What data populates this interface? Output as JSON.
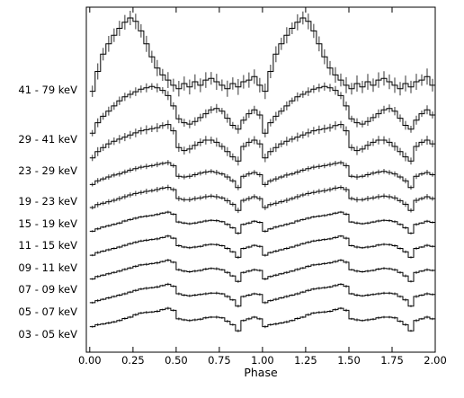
{
  "chart_data": {
    "type": "line",
    "title": "",
    "xlabel": "Phase",
    "ylabel": "",
    "xlim": [
      -0.02,
      2.0
    ],
    "x_ticks": [
      "0.00",
      "0.25",
      "0.50",
      "0.75",
      "1.00",
      "1.25",
      "1.50",
      "1.75",
      "2.00"
    ],
    "x_tick_values": [
      0.0,
      0.25,
      0.5,
      0.75,
      1.0,
      1.25,
      1.5,
      1.75,
      2.0
    ],
    "grid": false,
    "style": "step histogram with error bars, stacked energy bands, normalized pulse profiles",
    "phase_bins": 64,
    "series": [
      {
        "name": "03 - 05 keV",
        "values": [
          0.22,
          0.28,
          0.3,
          0.33,
          0.36,
          0.4,
          0.46,
          0.5,
          0.57,
          0.62,
          0.64,
          0.65,
          0.67,
          0.72,
          0.76,
          0.7,
          0.45,
          0.42,
          0.4,
          0.42,
          0.44,
          0.48,
          0.5,
          0.5,
          0.48,
          0.38,
          0.28,
          0.1,
          0.4,
          0.45,
          0.5,
          0.45
        ]
      },
      {
        "name": "05 - 07 keV",
        "values": [
          0.24,
          0.3,
          0.34,
          0.38,
          0.42,
          0.46,
          0.5,
          0.55,
          0.6,
          0.64,
          0.66,
          0.68,
          0.7,
          0.74,
          0.78,
          0.72,
          0.5,
          0.46,
          0.44,
          0.46,
          0.48,
          0.5,
          0.52,
          0.52,
          0.5,
          0.42,
          0.32,
          0.14,
          0.42,
          0.46,
          0.5,
          0.48
        ]
      },
      {
        "name": "07 - 09 keV",
        "values": [
          0.25,
          0.32,
          0.36,
          0.4,
          0.44,
          0.48,
          0.53,
          0.57,
          0.62,
          0.66,
          0.68,
          0.7,
          0.72,
          0.76,
          0.8,
          0.74,
          0.52,
          0.48,
          0.46,
          0.48,
          0.5,
          0.54,
          0.56,
          0.55,
          0.52,
          0.44,
          0.34,
          0.18,
          0.44,
          0.48,
          0.52,
          0.5
        ]
      },
      {
        "name": "09 - 11 keV",
        "values": [
          0.26,
          0.34,
          0.38,
          0.42,
          0.46,
          0.5,
          0.55,
          0.6,
          0.64,
          0.68,
          0.7,
          0.72,
          0.74,
          0.78,
          0.82,
          0.76,
          0.54,
          0.5,
          0.48,
          0.5,
          0.52,
          0.56,
          0.58,
          0.57,
          0.54,
          0.46,
          0.36,
          0.2,
          0.46,
          0.5,
          0.55,
          0.52
        ]
      },
      {
        "name": "11 - 15 keV",
        "values": [
          0.28,
          0.35,
          0.4,
          0.44,
          0.48,
          0.52,
          0.58,
          0.62,
          0.66,
          0.7,
          0.72,
          0.74,
          0.77,
          0.81,
          0.84,
          0.78,
          0.55,
          0.52,
          0.5,
          0.52,
          0.55,
          0.58,
          0.6,
          0.59,
          0.56,
          0.48,
          0.38,
          0.22,
          0.48,
          0.52,
          0.57,
          0.54
        ]
      },
      {
        "name": "15 - 19 keV",
        "values": [
          0.3,
          0.38,
          0.42,
          0.46,
          0.5,
          0.55,
          0.6,
          0.65,
          0.69,
          0.72,
          0.75,
          0.77,
          0.8,
          0.84,
          0.86,
          0.8,
          0.55,
          0.52,
          0.52,
          0.55,
          0.57,
          0.6,
          0.62,
          0.6,
          0.57,
          0.49,
          0.39,
          0.22,
          0.5,
          0.55,
          0.6,
          0.55
        ]
      },
      {
        "name": "19 - 23 keV",
        "values": [
          0.3,
          0.4,
          0.45,
          0.5,
          0.55,
          0.58,
          0.63,
          0.68,
          0.72,
          0.76,
          0.78,
          0.8,
          0.83,
          0.86,
          0.88,
          0.8,
          0.52,
          0.5,
          0.52,
          0.56,
          0.6,
          0.63,
          0.65,
          0.62,
          0.58,
          0.5,
          0.4,
          0.22,
          0.52,
          0.58,
          0.62,
          0.56
        ]
      },
      {
        "name": "23 - 29 keV",
        "values": [
          0.28,
          0.4,
          0.48,
          0.55,
          0.6,
          0.64,
          0.68,
          0.72,
          0.76,
          0.8,
          0.82,
          0.84,
          0.86,
          0.9,
          0.92,
          0.8,
          0.48,
          0.42,
          0.45,
          0.52,
          0.58,
          0.62,
          0.62,
          0.58,
          0.5,
          0.4,
          0.3,
          0.22,
          0.5,
          0.58,
          0.62,
          0.55
        ]
      },
      {
        "name": "29 - 41 keV",
        "values": [
          0.22,
          0.38,
          0.48,
          0.56,
          0.64,
          0.72,
          0.78,
          0.82,
          0.86,
          0.9,
          0.92,
          0.94,
          0.92,
          0.88,
          0.8,
          0.64,
          0.44,
          0.38,
          0.36,
          0.4,
          0.46,
          0.52,
          0.58,
          0.6,
          0.56,
          0.45,
          0.34,
          0.28,
          0.42,
          0.52,
          0.58,
          0.5
        ]
      },
      {
        "name": "41 - 79 keV",
        "values": [
          0.15,
          0.38,
          0.58,
          0.7,
          0.8,
          0.88,
          0.95,
          1.0,
          0.96,
          0.85,
          0.7,
          0.55,
          0.42,
          0.34,
          0.28,
          0.22,
          0.18,
          0.24,
          0.2,
          0.26,
          0.22,
          0.28,
          0.3,
          0.26,
          0.22,
          0.18,
          0.24,
          0.2,
          0.26,
          0.28,
          0.32,
          0.22
        ]
      }
    ]
  }
}
